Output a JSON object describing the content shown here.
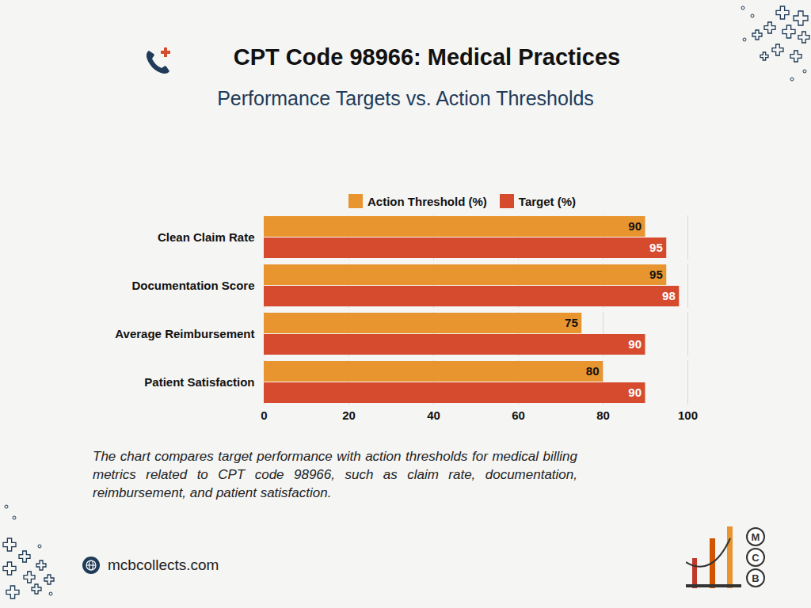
{
  "chart_data": {
    "type": "bar",
    "orientation": "horizontal",
    "title": "CPT Code 98966: Medical Practices",
    "subtitle": "Performance Targets vs. Action Thresholds",
    "categories": [
      "Clean Claim Rate",
      "Documentation Score",
      "Average Reimbursement",
      "Patient Satisfaction"
    ],
    "series": [
      {
        "name": "Action Threshold (%)",
        "color": "#e8952f",
        "values": [
          90,
          95,
          75,
          80
        ]
      },
      {
        "name": "Target (%)",
        "color": "#d64b2d",
        "values": [
          95,
          98,
          90,
          90
        ]
      }
    ],
    "xlim": [
      0,
      100
    ],
    "xticks": [
      0,
      20,
      40,
      60,
      80,
      100
    ],
    "grid": true,
    "legend": "top",
    "data_labels": true,
    "caption": "The chart compares target performance with action thresholds for medical billing metrics related to CPT code 98966, such as claim rate, documentation, reimbursement, and patient satisfaction.",
    "footer": "mcbcollects.com",
    "logo": "MCB"
  }
}
